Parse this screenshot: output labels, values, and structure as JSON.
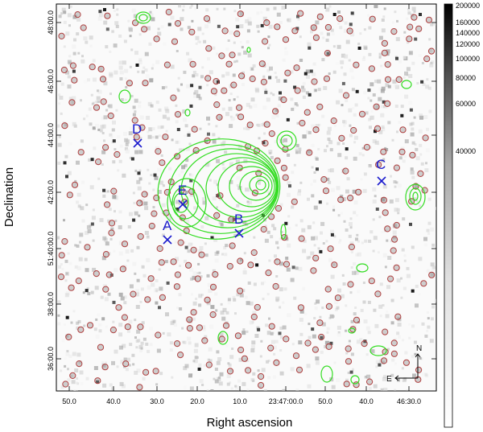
{
  "figure": {
    "x_axis_title": "Right ascension",
    "y_axis_title": "Declination",
    "ra_ticks": [
      "50.0",
      "40.0",
      "30.0",
      "20.0",
      "10.0",
      "23:47:00.0",
      "50.0",
      "40.0",
      "46:30.0"
    ],
    "dec_ticks": [
      "48:00.0",
      "46:00.0",
      "44:00.0",
      "42:00.0",
      "51:40:00.0",
      "38:00.0",
      "36:00.0"
    ],
    "colorbar_ticks": [
      "200000",
      "160000",
      "140000",
      "120000",
      "100000",
      "80000",
      "60000",
      "40000"
    ],
    "markers": [
      {
        "label": "D"
      },
      {
        "label": "C"
      },
      {
        "label": "E"
      },
      {
        "label": "A"
      },
      {
        "label": "B"
      }
    ],
    "compass": {
      "north": "N",
      "east": "E"
    },
    "colors": {
      "contour": "#33dd22",
      "source_circle": "#b04040",
      "marker": "#1a1acd",
      "background": "#ffffff"
    }
  }
}
